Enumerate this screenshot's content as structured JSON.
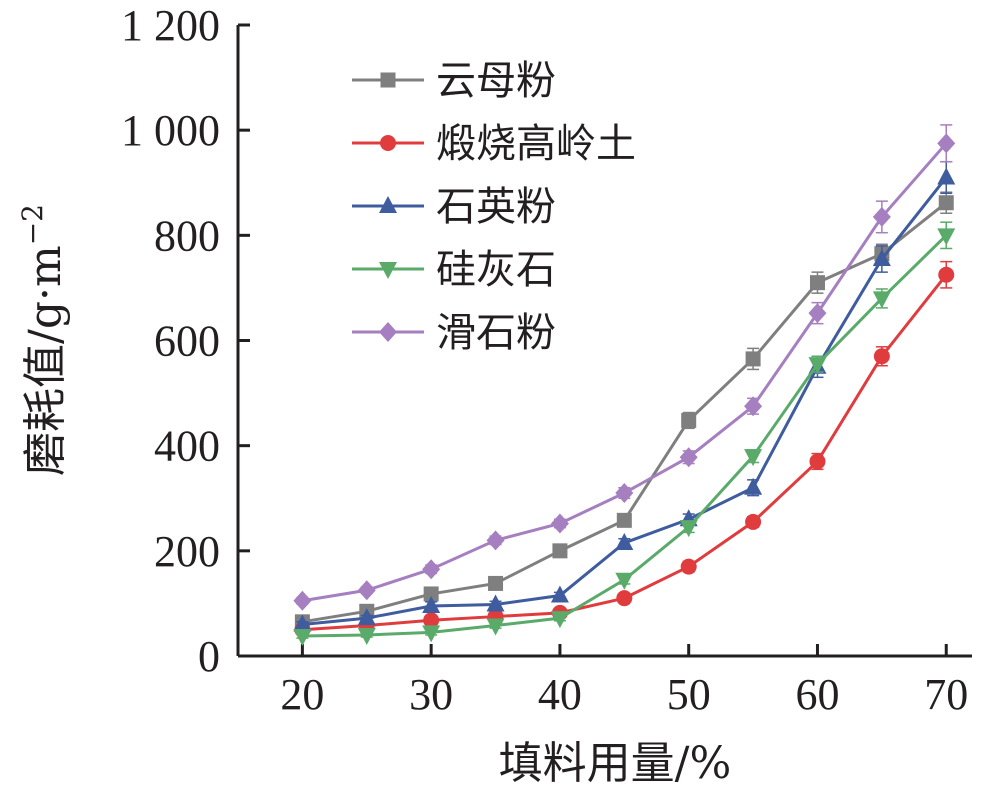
{
  "chart_data": {
    "type": "line",
    "title": "",
    "xlabel": "填料用量/%",
    "ylabel_main": "磨耗值/g·m",
    "ylabel_exp": "−2",
    "xlim": [
      15,
      72
    ],
    "ylim": [
      0,
      1200
    ],
    "x_ticks": [
      20,
      30,
      40,
      50,
      60,
      70
    ],
    "x_tick_labels": [
      "20",
      "30",
      "40",
      "50",
      "60",
      "70"
    ],
    "y_ticks": [
      0,
      200,
      400,
      600,
      800,
      1000,
      1200
    ],
    "y_tick_labels": [
      "0",
      "200",
      "400",
      "600",
      "800",
      "1 000",
      "1 200"
    ],
    "grid": false,
    "legend_position": "top-left",
    "x": [
      20,
      25,
      30,
      35,
      40,
      45,
      50,
      55,
      60,
      65,
      70
    ],
    "series": [
      {
        "name": "云母粉",
        "color": "#7f7f7f",
        "marker": "square",
        "values": [
          65,
          85,
          118,
          138,
          200,
          258,
          448,
          565,
          710,
          765,
          862
        ],
        "errors": [
          5,
          6,
          8,
          8,
          8,
          10,
          15,
          20,
          20,
          18,
          20
        ]
      },
      {
        "name": "煅烧高岭土",
        "color": "#e03c3e",
        "marker": "circle",
        "values": [
          50,
          58,
          68,
          75,
          82,
          110,
          170,
          255,
          370,
          570,
          725
        ],
        "errors": [
          5,
          5,
          6,
          6,
          6,
          8,
          10,
          10,
          15,
          18,
          25
        ]
      },
      {
        "name": "石英粉",
        "color": "#3e5c9e",
        "marker": "triangle-up",
        "values": [
          60,
          72,
          95,
          98,
          115,
          215,
          260,
          320,
          550,
          755,
          910
        ],
        "errors": [
          5,
          5,
          8,
          6,
          6,
          8,
          10,
          15,
          20,
          25,
          30
        ]
      },
      {
        "name": "硅灰石",
        "color": "#5aaa6a",
        "marker": "triangle-down",
        "values": [
          38,
          40,
          45,
          58,
          72,
          145,
          245,
          380,
          555,
          680,
          800
        ],
        "errors": [
          4,
          4,
          5,
          5,
          5,
          8,
          10,
          12,
          15,
          18,
          25
        ]
      },
      {
        "name": "滑石粉",
        "color": "#a57fc0",
        "marker": "diamond",
        "values": [
          105,
          125,
          165,
          220,
          252,
          310,
          378,
          475,
          652,
          835,
          975
        ],
        "errors": [
          6,
          6,
          8,
          8,
          8,
          10,
          12,
          15,
          20,
          30,
          35
        ]
      }
    ]
  }
}
